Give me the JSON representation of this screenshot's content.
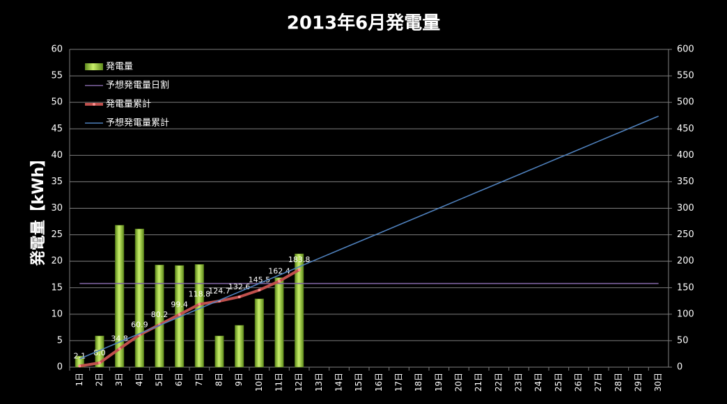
{
  "chart_data": {
    "type": "combo",
    "title": "2013年6月発電量",
    "ylabel": "発電量【kWh】",
    "categories": [
      "1日",
      "2日",
      "3日",
      "4日",
      "5日",
      "6日",
      "7日",
      "8日",
      "9日",
      "10日",
      "11日",
      "12日",
      "13日",
      "14日",
      "15日",
      "16日",
      "17日",
      "18日",
      "19日",
      "20日",
      "21日",
      "22日",
      "23日",
      "24日",
      "25日",
      "26日",
      "27日",
      "28日",
      "29日",
      "30日"
    ],
    "ylim": [
      0,
      60
    ],
    "yticks": [
      0,
      5,
      10,
      15,
      20,
      25,
      30,
      35,
      40,
      45,
      50,
      55,
      60
    ],
    "y2lim": [
      0,
      600
    ],
    "y2ticks": [
      0,
      50,
      100,
      150,
      200,
      250,
      300,
      350,
      400,
      450,
      500,
      550,
      600
    ],
    "grid": true,
    "legend": "upper left",
    "series": [
      {
        "name": "発電量",
        "type": "bar",
        "color": "#9bcc3a",
        "axis": "y",
        "values": [
          2.1,
          5.9,
          26.8,
          26.1,
          19.3,
          19.2,
          19.4,
          5.9,
          7.9,
          12.9,
          16.9,
          21.4,
          null,
          null,
          null,
          null,
          null,
          null,
          null,
          null,
          null,
          null,
          null,
          null,
          null,
          null,
          null,
          null,
          null,
          null
        ]
      },
      {
        "name": "予想発電量日割",
        "type": "line",
        "color": "#8064a2",
        "axis": "y",
        "values": [
          15.8,
          15.8,
          15.8,
          15.8,
          15.8,
          15.8,
          15.8,
          15.8,
          15.8,
          15.8,
          15.8,
          15.8,
          15.8,
          15.8,
          15.8,
          15.8,
          15.8,
          15.8,
          15.8,
          15.8,
          15.8,
          15.8,
          15.8,
          15.8,
          15.8,
          15.8,
          15.8,
          15.8,
          15.8,
          15.8
        ]
      },
      {
        "name": "発電量累計",
        "type": "line",
        "color": "#c0504d",
        "axis": "y2",
        "markers": true,
        "values": [
          2.1,
          8.0,
          34.8,
          60.9,
          80.2,
          99.4,
          118.8,
          124.7,
          132.6,
          145.5,
          162.4,
          183.8,
          null,
          null,
          null,
          null,
          null,
          null,
          null,
          null,
          null,
          null,
          null,
          null,
          null,
          null,
          null,
          null,
          null,
          null
        ],
        "value_labels": [
          "2.1",
          "8.0",
          "34.8",
          "60.9",
          "80.2",
          "99.4",
          "118.8",
          "124.7",
          "132.6",
          "145.5",
          "162.4",
          "183.8",
          null,
          null,
          null,
          null,
          null,
          null,
          null,
          null,
          null,
          null,
          null,
          null,
          null,
          null,
          null,
          null,
          null,
          null
        ]
      },
      {
        "name": "予想発電量累計",
        "type": "line",
        "color": "#4f81bd",
        "axis": "y2",
        "values": [
          15.8,
          31.6,
          47.4,
          63.2,
          79.0,
          94.8,
          110.6,
          126.4,
          142.2,
          158.0,
          173.8,
          189.6,
          205.4,
          221.2,
          237.0,
          252.8,
          268.6,
          284.4,
          300.2,
          316.0,
          331.8,
          347.6,
          363.4,
          379.2,
          395.0,
          410.8,
          426.6,
          442.4,
          458.2,
          474.0
        ]
      }
    ]
  }
}
